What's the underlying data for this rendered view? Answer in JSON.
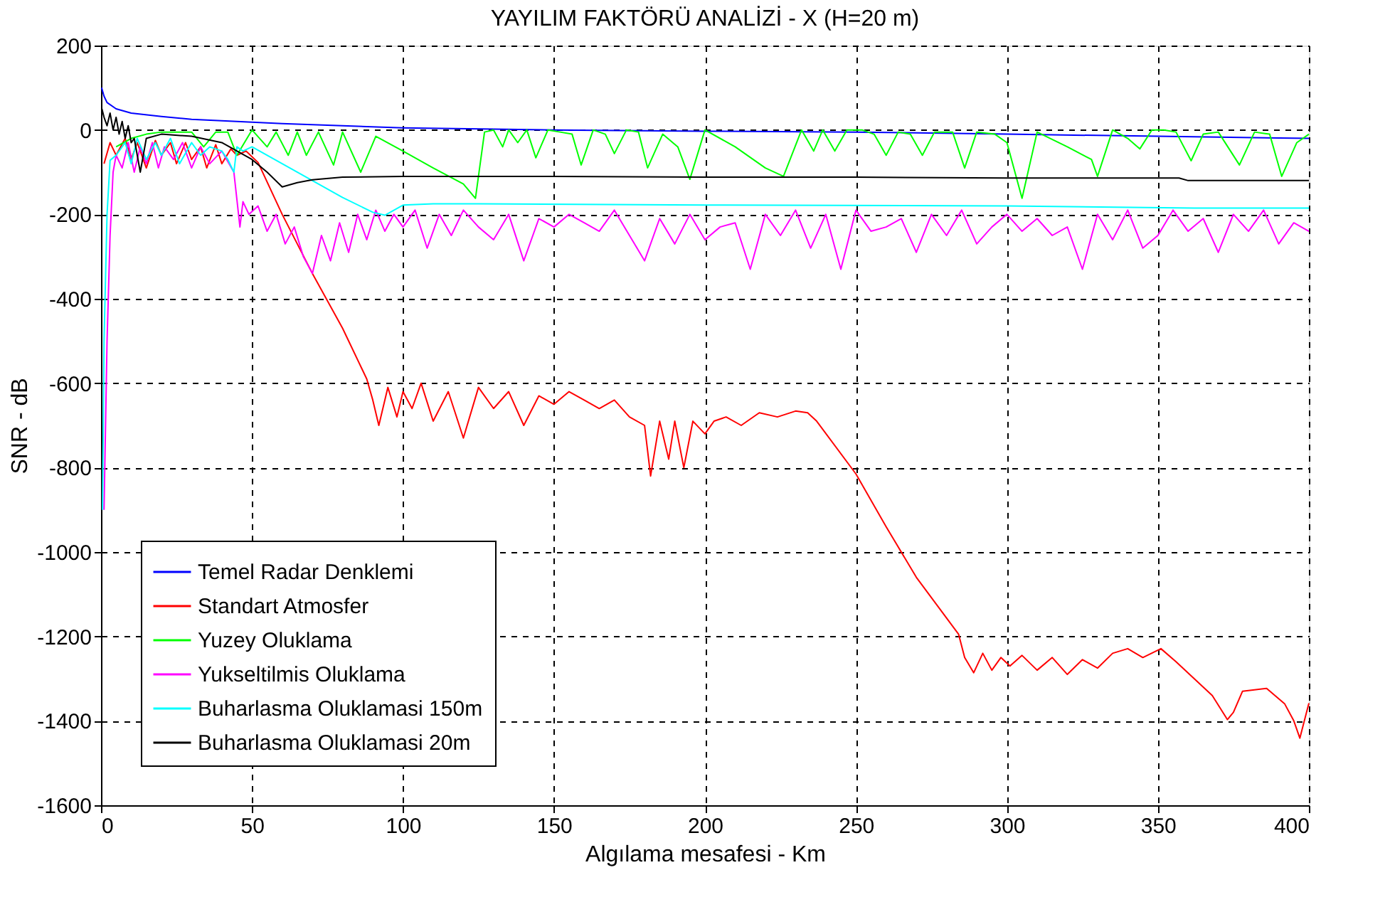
{
  "chart_data": {
    "type": "line",
    "title": "YAYILIM FAKTÖRÜ ANALİZİ - X (H=20 m)",
    "xlabel": "Algılama mesafesi - Km",
    "ylabel": "SNR - dB",
    "xlim": [
      0,
      400
    ],
    "ylim": [
      -1600,
      200
    ],
    "xticks": [
      0,
      50,
      100,
      150,
      200,
      250,
      300,
      350,
      400
    ],
    "yticks": [
      -1600,
      -1400,
      -1200,
      -1000,
      -800,
      -600,
      -400,
      -200,
      0,
      200
    ],
    "grid": true,
    "legend": "bottom left",
    "marker": "none",
    "line_style": "solid",
    "series": [
      {
        "name": "Temel Radar Denklemi",
        "color": "#0000ff",
        "x": [
          0.2,
          1,
          2,
          5,
          10,
          20,
          30,
          45,
          60,
          80,
          100,
          130,
          150,
          200,
          250,
          300,
          350,
          400
        ],
        "values": [
          100,
          80,
          65,
          50,
          40,
          32,
          25,
          20,
          15,
          10,
          5,
          2,
          0,
          -3,
          -5,
          -10,
          -15,
          -20
        ]
      },
      {
        "name": "Standart Atmosfer",
        "color": "#ff0000",
        "x": [
          1,
          3,
          5,
          8,
          10,
          12,
          15,
          18,
          20,
          23,
          25,
          28,
          30,
          33,
          35,
          38,
          40,
          43,
          45,
          48,
          52,
          60,
          70,
          80,
          88,
          90,
          92,
          95,
          98,
          100,
          103,
          106,
          110,
          115,
          120,
          125,
          130,
          135,
          140,
          145,
          150,
          155,
          160,
          165,
          170,
          175,
          180,
          182,
          185,
          188,
          190,
          193,
          196,
          200,
          203,
          207,
          212,
          218,
          224,
          230,
          234,
          237,
          250,
          260,
          270,
          284,
          286,
          289,
          292,
          295,
          298,
          301,
          305,
          310,
          315,
          320,
          325,
          330,
          335,
          340,
          345,
          351,
          356,
          362,
          368,
          373,
          375,
          378,
          386,
          392,
          395,
          397,
          400
        ],
        "values": [
          -80,
          -30,
          -60,
          -20,
          -70,
          -30,
          -90,
          -25,
          -60,
          -30,
          -80,
          -30,
          -70,
          -40,
          -90,
          -35,
          -80,
          -45,
          -60,
          -50,
          -77,
          -200,
          -340,
          -470,
          -590,
          -640,
          -700,
          -610,
          -680,
          -620,
          -660,
          -600,
          -690,
          -620,
          -730,
          -610,
          -660,
          -620,
          -700,
          -630,
          -650,
          -620,
          -640,
          -660,
          -640,
          -680,
          -700,
          -820,
          -690,
          -780,
          -690,
          -800,
          -690,
          -720,
          -690,
          -680,
          -700,
          -670,
          -680,
          -666,
          -670,
          -690,
          -815,
          -940,
          -1060,
          -1195,
          -1250,
          -1286,
          -1240,
          -1280,
          -1250,
          -1270,
          -1245,
          -1280,
          -1250,
          -1290,
          -1255,
          -1275,
          -1240,
          -1229,
          -1250,
          -1229,
          -1260,
          -1300,
          -1340,
          -1397,
          -1380,
          -1330,
          -1323,
          -1360,
          -1400,
          -1441,
          -1358
        ]
      },
      {
        "name": "Yuzey Oluklama",
        "color": "#00ff00",
        "x": [
          5,
          10,
          15,
          20,
          25,
          30,
          34,
          38,
          42,
          45,
          50,
          55,
          58,
          62,
          65,
          68,
          72,
          77,
          80,
          86,
          91,
          100,
          110,
          120,
          124,
          127,
          130,
          133,
          135,
          138,
          141,
          144,
          148,
          152,
          156,
          159,
          163,
          167,
          170,
          174,
          178,
          181,
          186,
          191,
          195,
          200,
          210,
          220,
          226,
          232,
          236,
          239,
          243,
          247,
          252,
          256,
          260,
          264,
          268,
          272,
          276,
          282,
          286,
          290,
          296,
          300,
          305,
          310,
          320,
          328,
          330,
          335,
          340,
          344,
          348,
          352,
          356,
          361,
          365,
          370,
          377,
          382,
          387,
          391,
          396,
          400
        ],
        "values": [
          -40,
          -20,
          -10,
          -5,
          -5,
          -5,
          -40,
          -5,
          -5,
          -60,
          0,
          -40,
          -5,
          -60,
          -5,
          -60,
          -5,
          -83,
          -5,
          -100,
          -15,
          -50,
          -90,
          -128,
          -162,
          -5,
          0,
          -40,
          0,
          -30,
          0,
          -66,
          0,
          -5,
          -10,
          -83,
          0,
          -10,
          -56,
          0,
          -5,
          -90,
          -10,
          -40,
          -117,
          0,
          -40,
          -90,
          -110,
          0,
          -50,
          0,
          -50,
          0,
          0,
          -10,
          -60,
          -5,
          -10,
          -60,
          -5,
          -5,
          -90,
          -5,
          -10,
          -30,
          -162,
          -5,
          -40,
          -70,
          -110,
          0,
          -20,
          -45,
          0,
          0,
          -5,
          -73,
          -10,
          -5,
          -83,
          -5,
          -10,
          -110,
          -30,
          -10
        ]
      },
      {
        "name": "Yukseltilmis Oluklama",
        "color": "#ff00ff",
        "x": [
          1,
          2,
          3,
          4,
          5,
          7,
          9,
          11,
          13,
          15,
          17,
          19,
          21,
          24,
          27,
          30,
          33,
          36,
          40,
          44,
          46,
          47,
          49,
          52,
          55,
          58,
          61,
          64,
          67,
          70,
          73,
          76,
          79,
          82,
          85,
          88,
          91,
          94,
          97,
          100,
          104,
          108,
          112,
          116,
          120,
          125,
          130,
          135,
          140,
          145,
          150,
          155,
          160,
          165,
          170,
          175,
          180,
          185,
          190,
          195,
          200,
          205,
          210,
          215,
          220,
          225,
          230,
          235,
          240,
          245,
          250,
          255,
          260,
          265,
          270,
          275,
          280,
          285,
          290,
          295,
          300,
          305,
          310,
          315,
          320,
          325,
          330,
          335,
          340,
          345,
          350,
          355,
          360,
          365,
          370,
          375,
          380,
          385,
          390,
          395,
          400
        ],
        "values": [
          -900,
          -500,
          -250,
          -100,
          -60,
          -90,
          -30,
          -100,
          -40,
          -80,
          -30,
          -90,
          -40,
          -70,
          -30,
          -90,
          -40,
          -80,
          -50,
          -100,
          -230,
          -170,
          -200,
          -180,
          -240,
          -200,
          -270,
          -230,
          -300,
          -340,
          -250,
          -310,
          -220,
          -290,
          -200,
          -260,
          -190,
          -240,
          -200,
          -230,
          -190,
          -280,
          -200,
          -250,
          -190,
          -230,
          -260,
          -200,
          -310,
          -210,
          -230,
          -200,
          -220,
          -240,
          -190,
          -250,
          -310,
          -210,
          -270,
          -200,
          -260,
          -230,
          -220,
          -330,
          -200,
          -250,
          -190,
          -280,
          -200,
          -330,
          -190,
          -240,
          -230,
          -210,
          -290,
          -200,
          -250,
          -190,
          -270,
          -230,
          -200,
          -240,
          -210,
          -250,
          -230,
          -330,
          -200,
          -260,
          -190,
          -280,
          -250,
          -190,
          -240,
          -210,
          -290,
          -200,
          -240,
          -190,
          -270,
          -220,
          -240
        ]
      },
      {
        "name": "Buharlasma Oluklamasi 150m",
        "color": "#00ffff",
        "x": [
          0.5,
          1,
          2,
          3,
          5,
          8,
          10,
          12,
          15,
          18,
          20,
          23,
          26,
          30,
          33,
          36,
          40,
          42,
          44,
          45,
          47,
          50,
          60,
          70,
          80,
          90,
          94,
          100,
          110,
          125,
          200,
          300,
          362,
          400
        ],
        "values": [
          -900,
          -500,
          -200,
          -72,
          -60,
          -30,
          -80,
          -20,
          -70,
          -30,
          -60,
          -20,
          -80,
          -30,
          -60,
          -40,
          -50,
          -70,
          -100,
          -40,
          -50,
          -40,
          -80,
          -120,
          -160,
          -195,
          -202,
          -178,
          -175,
          -175,
          -178,
          -180,
          -185,
          -185
        ]
      },
      {
        "name": "Buharlasma Oluklamasi 20m",
        "color": "#000000",
        "x": [
          0.3,
          1,
          2,
          3,
          4,
          5,
          6,
          7,
          8,
          9,
          10,
          11,
          13,
          15,
          20,
          30,
          40,
          50,
          55,
          60,
          65,
          70,
          80,
          100,
          150,
          200,
          250,
          300,
          357,
          360,
          400
        ],
        "values": [
          50,
          30,
          10,
          40,
          0,
          30,
          -10,
          20,
          -20,
          10,
          -30,
          -20,
          -100,
          -20,
          -10,
          -15,
          -30,
          -70,
          -100,
          -135,
          -125,
          -118,
          -112,
          -110,
          -110,
          -112,
          -112,
          -114,
          -114,
          -120,
          -120
        ]
      }
    ]
  }
}
